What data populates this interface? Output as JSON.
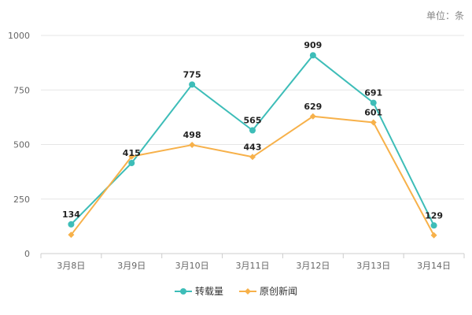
{
  "unit_label": "单位：条",
  "chart_data": {
    "type": "line",
    "categories": [
      "3月8日",
      "3月9日",
      "3月10日",
      "3月11日",
      "3月12日",
      "3月13日",
      "3月14日"
    ],
    "series": [
      {
        "name": "转载量",
        "values": [
          134,
          415,
          775,
          565,
          909,
          691,
          129
        ],
        "color": "#3dbdb8",
        "marker": "circle"
      },
      {
        "name": "原创新闻",
        "values": [
          86,
          445,
          498,
          443,
          629,
          601,
          84
        ],
        "color": "#f7b14a",
        "marker": "diamond"
      }
    ],
    "data_labels": [
      {
        "category": "3月8日",
        "value": 134,
        "text": "134"
      },
      {
        "category": "3月9日",
        "value": 415,
        "text": "415"
      },
      {
        "category": "3月10日",
        "value": 775,
        "text": "775"
      },
      {
        "category": "3月10日",
        "value": 498,
        "text": "498"
      },
      {
        "category": "3月11日",
        "value": 565,
        "text": "565"
      },
      {
        "category": "3月11日",
        "value": 443,
        "text": "443"
      },
      {
        "category": "3月12日",
        "value": 909,
        "text": "909"
      },
      {
        "category": "3月12日",
        "value": 629,
        "text": "629"
      },
      {
        "category": "3月13日",
        "value": 691,
        "text": "691"
      },
      {
        "category": "3月13日",
        "value": 601,
        "text": "601"
      },
      {
        "category": "3月14日",
        "value": 129,
        "text": "129"
      }
    ],
    "ylim": [
      0,
      1000
    ],
    "yticks": [
      "0",
      "250",
      "500",
      "750",
      "1000"
    ],
    "grid": true,
    "legend_position": "bottom-center"
  }
}
